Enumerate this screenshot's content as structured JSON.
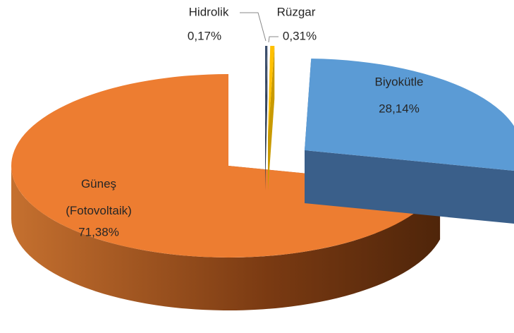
{
  "chart_data": {
    "type": "pie",
    "categories": [
      "Hidrolik",
      "Rüzgar",
      "Biyokütle",
      "Güneş (Fotovoltaik)"
    ],
    "values": [
      0.17,
      0.31,
      28.14,
      71.38
    ],
    "value_labels": [
      "0,17%",
      "0,31%",
      "28,14%",
      "71,38%"
    ],
    "colors": [
      "#3b4e6b",
      "#ffc000",
      "#5b9bd5",
      "#ed7d31"
    ]
  }
}
